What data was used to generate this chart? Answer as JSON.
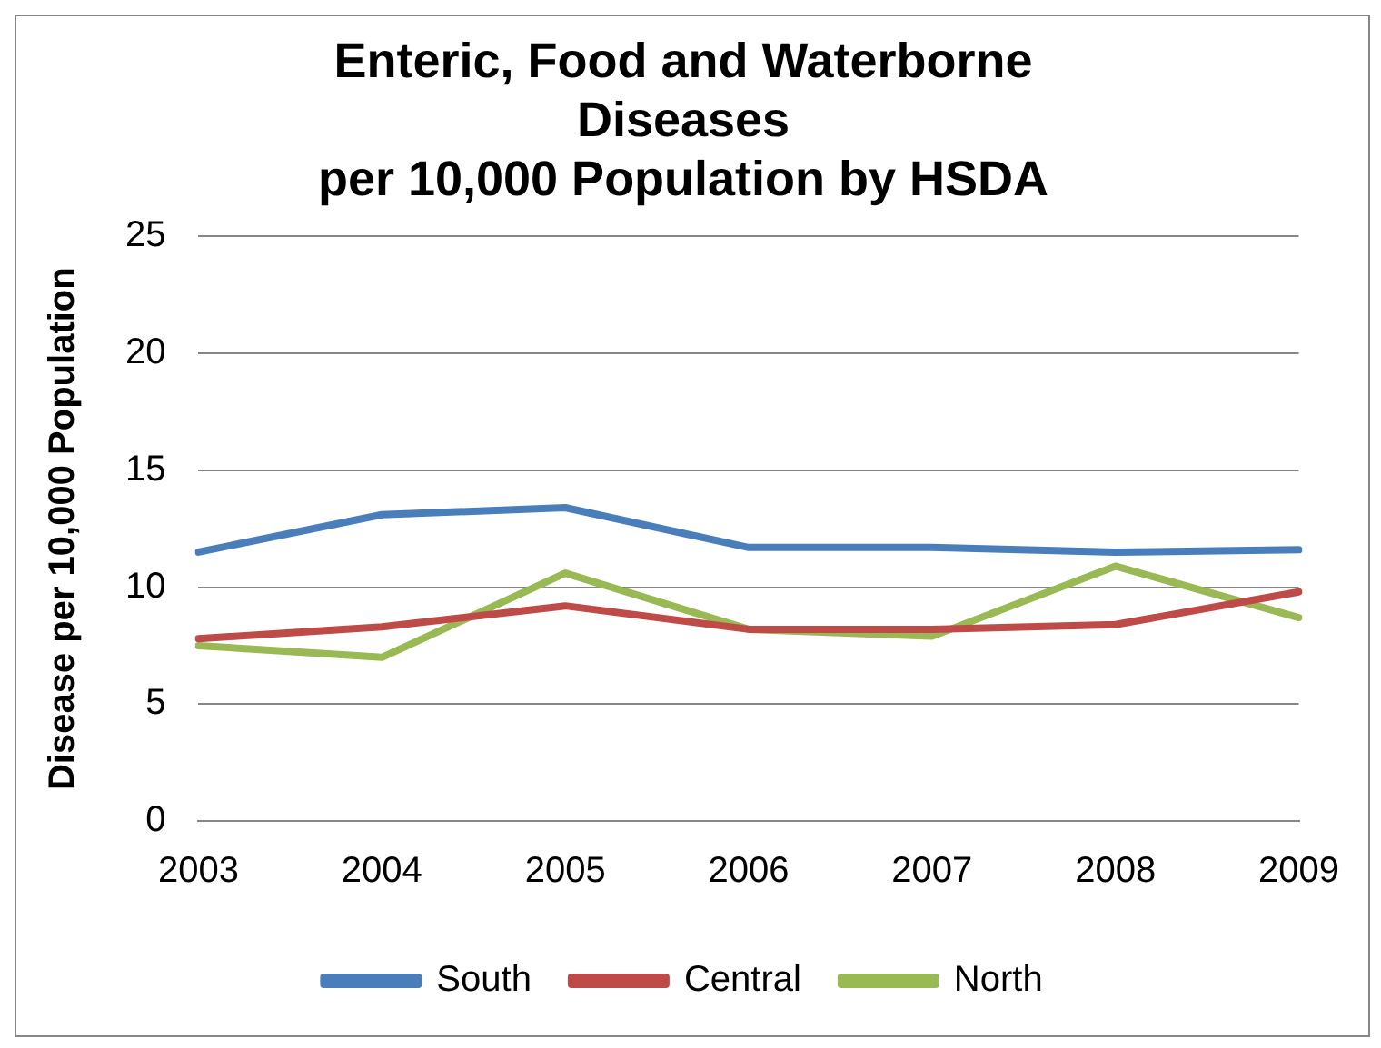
{
  "chart_data": {
    "type": "line",
    "title": [
      "Enteric, Food and Waterborne",
      "Diseases",
      "per 10,000 Population by HSDA"
    ],
    "ylabel": "Disease per 10,000 Population",
    "categories": [
      "2003",
      "2004",
      "2005",
      "2006",
      "2007",
      "2008",
      "2009"
    ],
    "series": [
      {
        "name": "South",
        "color": "#4a7ebb",
        "values": [
          11.5,
          13.1,
          13.4,
          11.7,
          11.7,
          11.5,
          11.6
        ]
      },
      {
        "name": "Central",
        "color": "#be4b48",
        "values": [
          7.8,
          8.3,
          9.2,
          8.2,
          8.2,
          8.4,
          9.8
        ]
      },
      {
        "name": "North",
        "color": "#98b954",
        "values": [
          7.5,
          7.0,
          10.6,
          8.2,
          7.9,
          10.9,
          8.7
        ]
      }
    ],
    "ylim": [
      0,
      25
    ],
    "yticks": [
      0,
      5,
      10,
      15,
      20,
      25
    ],
    "grid": "y",
    "legend": "bottom",
    "marker": "none",
    "line_style": "solid"
  }
}
